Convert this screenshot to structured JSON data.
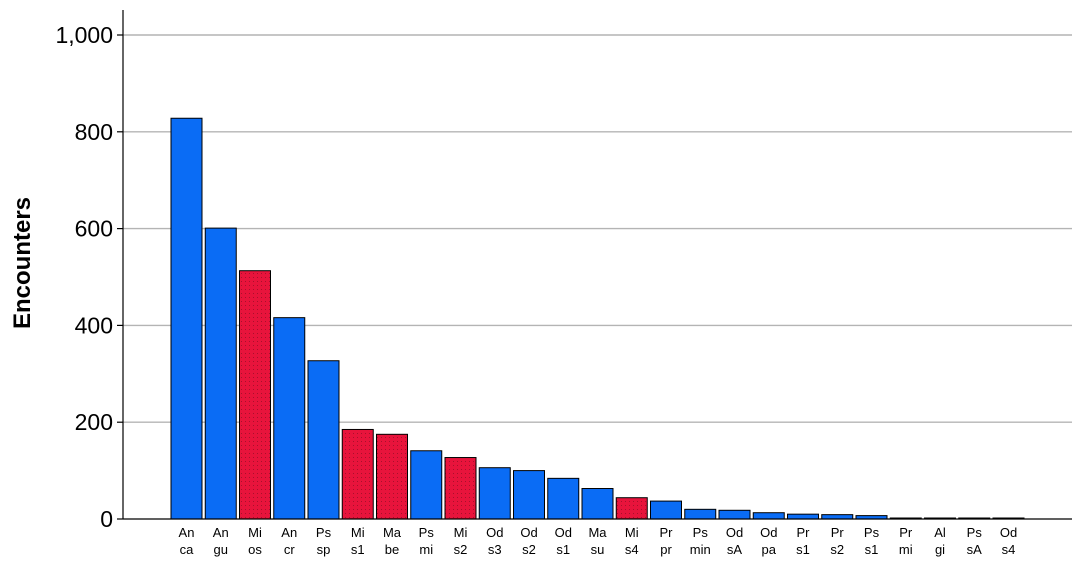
{
  "chart_data": {
    "type": "bar",
    "title": "",
    "xlabel": "",
    "ylabel": "Encounters",
    "ylim": [
      0,
      1000
    ],
    "yticks": [
      0,
      200,
      400,
      600,
      800,
      1000
    ],
    "ytick_labels": [
      "0",
      "200",
      "400",
      "600",
      "800",
      "1,000"
    ],
    "grid": "horizontal",
    "legend": "none",
    "colors": {
      "blue": "#0a6cf5",
      "red": "#e8143c",
      "axis": "#000000",
      "grid": "#b4b4b4"
    },
    "categories": [
      [
        "An",
        "ca"
      ],
      [
        "An",
        "gu"
      ],
      [
        "Mi",
        "os"
      ],
      [
        "An",
        "cr"
      ],
      [
        "Ps",
        "sp"
      ],
      [
        "Mi",
        "s1"
      ],
      [
        "Ma",
        "be"
      ],
      [
        "Ps",
        "mi"
      ],
      [
        "Mi",
        "s2"
      ],
      [
        "Od",
        "s3"
      ],
      [
        "Od",
        "s2"
      ],
      [
        "Od",
        "s1"
      ],
      [
        "Ma",
        "su"
      ],
      [
        "Mi",
        "s4"
      ],
      [
        "Pr",
        "pr"
      ],
      [
        "Ps",
        "min"
      ],
      [
        "Od",
        "sA"
      ],
      [
        "Od",
        "pa"
      ],
      [
        "Pr",
        "s1"
      ],
      [
        "Pr",
        "s2"
      ],
      [
        "Ps",
        "s1"
      ],
      [
        "Pr",
        "mi"
      ],
      [
        "Al",
        "gi"
      ],
      [
        "Ps",
        "sA"
      ],
      [
        "Od",
        "s4"
      ]
    ],
    "values": [
      828,
      601,
      513,
      416,
      327,
      185,
      175,
      141,
      127,
      106,
      100,
      84,
      63,
      44,
      37,
      20,
      18,
      13,
      10,
      9,
      7,
      2,
      1,
      1,
      1
    ],
    "bar_colors": [
      "blue",
      "blue",
      "red",
      "blue",
      "blue",
      "red",
      "red",
      "blue",
      "red",
      "blue",
      "blue",
      "blue",
      "blue",
      "red",
      "blue",
      "blue",
      "blue",
      "blue",
      "blue",
      "blue",
      "blue",
      "blue",
      "blue",
      "blue",
      "blue"
    ]
  }
}
